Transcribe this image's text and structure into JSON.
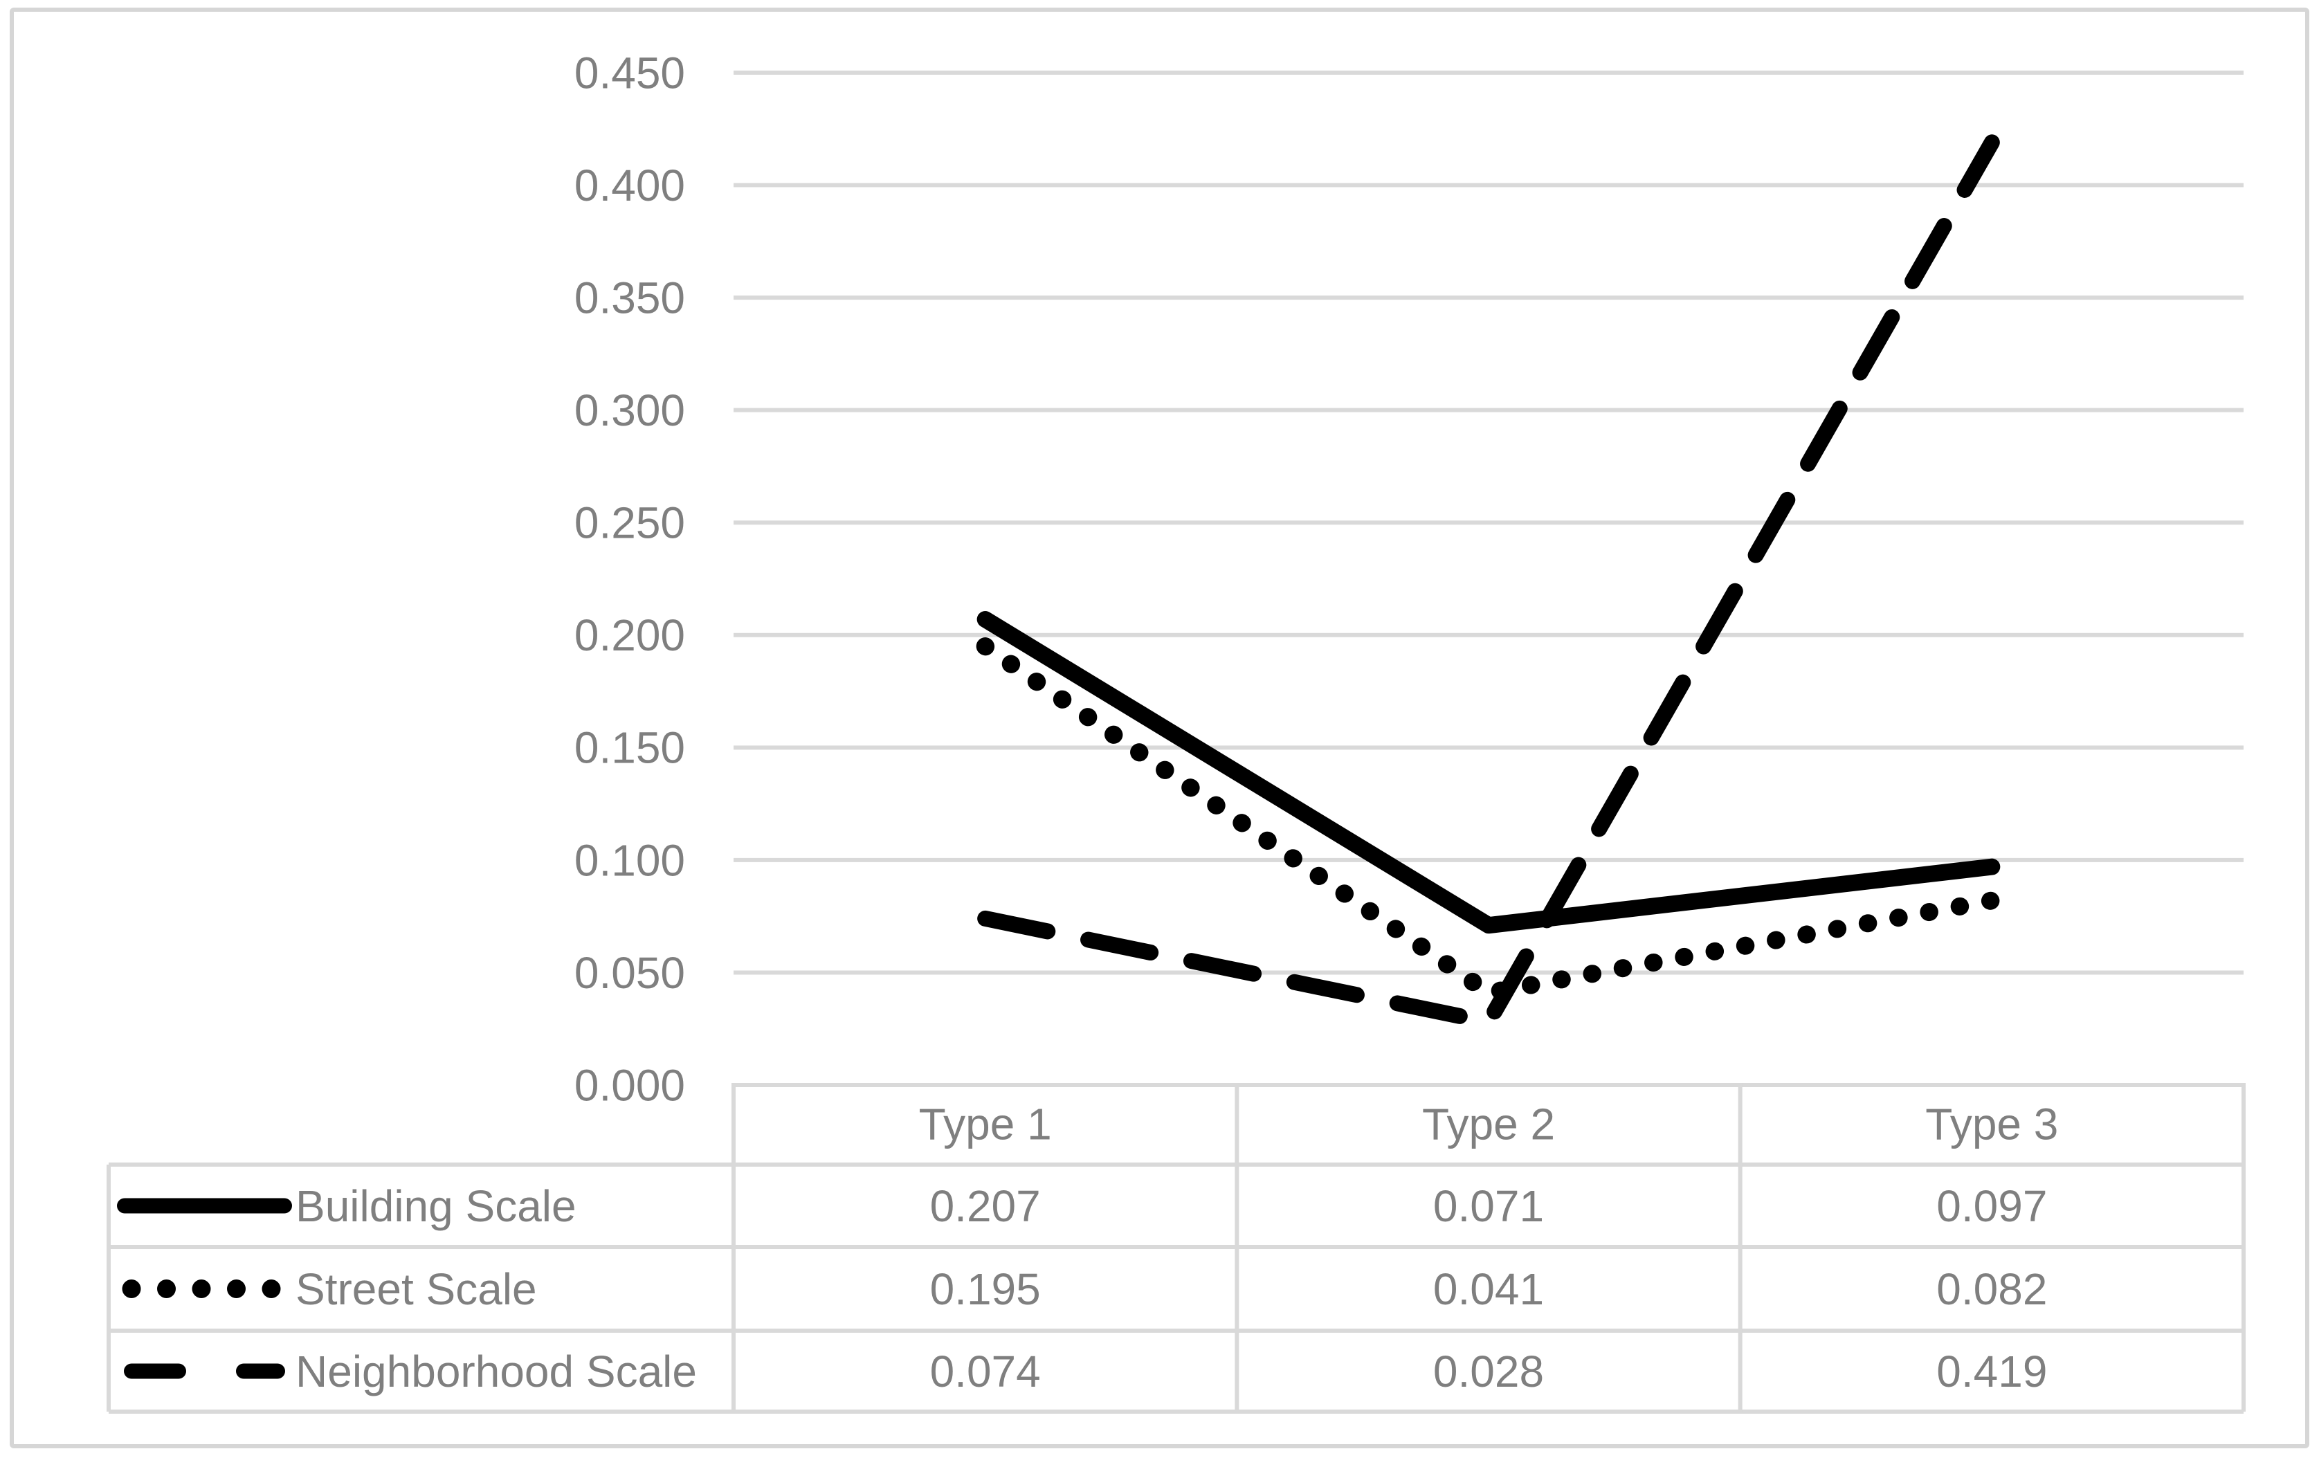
{
  "chart_data": {
    "type": "line",
    "categories": [
      "Type 1",
      "Type 2",
      "Type 3"
    ],
    "series": [
      {
        "name": "Building Scale",
        "style": "solid",
        "values": [
          0.207,
          0.071,
          0.097
        ]
      },
      {
        "name": "Street Scale",
        "style": "dotted",
        "values": [
          0.195,
          0.041,
          0.082
        ]
      },
      {
        "name": "Neighborhood Scale",
        "style": "dashed",
        "values": [
          0.074,
          0.028,
          0.419
        ]
      }
    ],
    "title": "",
    "xlabel": "",
    "ylabel": "",
    "y_axis": {
      "min": 0.0,
      "max": 0.45,
      "step": 0.05,
      "tick_labels": [
        "0.450",
        "0.400",
        "0.350",
        "0.300",
        "0.250",
        "0.200",
        "0.150",
        "0.100",
        "0.050",
        "0.000"
      ]
    },
    "grid": true,
    "legend_position": "data-table-left-column",
    "line_color": "#000000",
    "grid_color": "#d9d9d9",
    "text_color": "#7f7f7f",
    "background_color": "#ffffff"
  },
  "data_table": {
    "header": [
      "Type 1",
      "Type 2",
      "Type 3"
    ],
    "rows": [
      {
        "label": "Building Scale",
        "values": [
          "0.207",
          "0.071",
          "0.097"
        ]
      },
      {
        "label": "Street Scale",
        "values": [
          "0.195",
          "0.041",
          "0.082"
        ]
      },
      {
        "label": "Neighborhood Scale",
        "values": [
          "0.074",
          "0.028",
          "0.419"
        ]
      }
    ]
  }
}
